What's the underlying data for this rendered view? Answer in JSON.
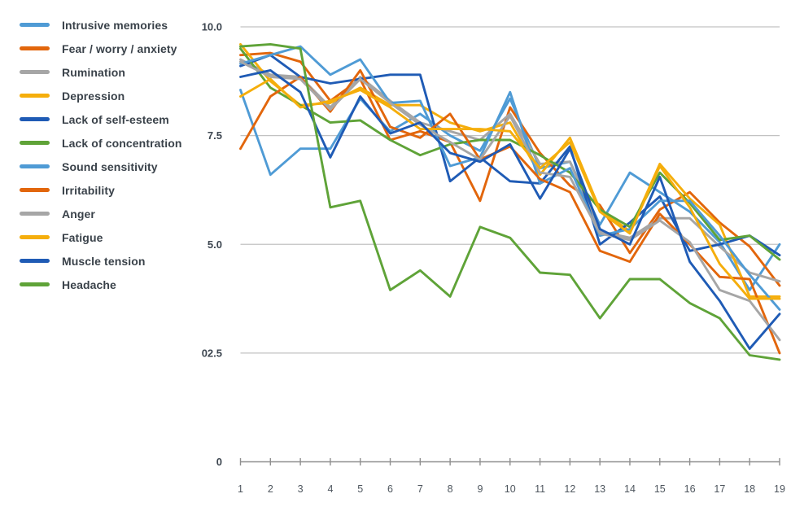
{
  "palette": {
    "lightblue": "#4f9bd5",
    "orange": "#e2660c",
    "gray": "#a6a6a6",
    "yellow": "#f5ae0c",
    "darkblue": "#1f5bb5",
    "green": "#5fa338"
  },
  "axis": {
    "grid_color": "#c2c2c2",
    "axis_color": "#8f8f8f"
  },
  "chart_data": {
    "type": "line",
    "title": "",
    "xlabel": "",
    "ylabel": "",
    "ylim": [
      0,
      10
    ],
    "grid": "horizontal",
    "legend_position": "left",
    "x": [
      1,
      2,
      3,
      4,
      5,
      6,
      7,
      8,
      9,
      10,
      11,
      12,
      13,
      14,
      15,
      16,
      17,
      18,
      19
    ],
    "xticklabels": [
      "1",
      "2",
      "3",
      "4",
      "5",
      "6",
      "7",
      "8",
      "9",
      "10",
      "11",
      "12",
      "13",
      "14",
      "15",
      "16",
      "17",
      "18",
      "19"
    ],
    "yticks": [
      {
        "label": "10.0",
        "value": 10.0
      },
      {
        "label": "7.5",
        "value": 7.5
      },
      {
        "label": "5.0",
        "value": 5.0
      },
      {
        "label": "02.5",
        "value": 2.5
      },
      {
        "label": "0",
        "value": 0.0
      }
    ],
    "series": [
      {
        "name": "Intrusive memories",
        "color": "lightblue",
        "values": [
          8.55,
          6.6,
          7.2,
          7.2,
          8.35,
          7.6,
          8.0,
          7.5,
          7.15,
          8.35,
          6.75,
          6.9,
          5.45,
          6.65,
          6.2,
          5.75,
          5.05,
          3.95,
          5.0
        ]
      },
      {
        "name": "Fear / worry / anxiety",
        "color": "orange",
        "values": [
          9.35,
          9.4,
          9.2,
          8.3,
          8.8,
          7.4,
          7.6,
          7.35,
          6.0,
          8.15,
          7.1,
          6.35,
          5.9,
          4.8,
          5.8,
          6.2,
          5.5,
          4.95,
          4.05
        ]
      },
      {
        "name": "Rumination",
        "color": "gray",
        "values": [
          9.25,
          8.9,
          8.85,
          8.15,
          8.85,
          8.3,
          7.8,
          7.6,
          7.4,
          8.0,
          6.85,
          6.9,
          5.3,
          5.15,
          5.6,
          5.6,
          4.95,
          4.35,
          4.15
        ]
      },
      {
        "name": "Depression",
        "color": "yellow",
        "values": [
          9.6,
          8.75,
          8.2,
          8.25,
          8.6,
          8.2,
          8.2,
          7.8,
          7.6,
          7.8,
          6.6,
          7.45,
          5.8,
          5.3,
          6.85,
          6.05,
          5.45,
          3.8,
          3.8
        ]
      },
      {
        "name": "Lack of self-esteem",
        "color": "darkblue",
        "values": [
          9.1,
          9.35,
          8.85,
          8.7,
          8.8,
          8.9,
          8.9,
          6.45,
          7.0,
          6.45,
          6.4,
          7.25,
          5.0,
          5.5,
          6.1,
          4.85,
          5.0,
          5.2,
          4.75
        ]
      },
      {
        "name": "Lack of concentration",
        "color": "green",
        "values": [
          9.5,
          8.6,
          8.2,
          7.8,
          7.85,
          7.4,
          7.05,
          7.3,
          7.4,
          7.4,
          7.05,
          6.65,
          5.8,
          5.4,
          6.65,
          5.95,
          5.1,
          5.2,
          4.65
        ]
      },
      {
        "name": "Sound sensitivity",
        "color": "lightblue",
        "values": [
          9.15,
          9.35,
          9.55,
          8.9,
          9.25,
          8.25,
          8.3,
          6.8,
          7.0,
          8.5,
          6.4,
          6.75,
          5.2,
          5.35,
          6.0,
          6.0,
          5.2,
          4.3,
          3.5
        ]
      },
      {
        "name": "Irritability",
        "color": "orange",
        "values": [
          7.2,
          8.4,
          8.85,
          8.05,
          9.0,
          7.7,
          7.45,
          8.0,
          6.95,
          7.25,
          6.5,
          6.2,
          4.85,
          4.6,
          5.7,
          5.0,
          4.25,
          4.2,
          2.5
        ]
      },
      {
        "name": "Anger",
        "color": "gray",
        "values": [
          9.2,
          8.85,
          8.8,
          8.1,
          8.8,
          8.25,
          7.75,
          7.35,
          6.95,
          7.95,
          6.65,
          6.55,
          5.25,
          5.1,
          5.55,
          5.05,
          3.95,
          3.7,
          2.8
        ]
      },
      {
        "name": "Fatigue",
        "color": "yellow",
        "values": [
          8.4,
          8.8,
          8.15,
          8.3,
          8.55,
          8.15,
          7.65,
          7.65,
          7.65,
          7.6,
          6.75,
          7.35,
          5.75,
          5.25,
          6.8,
          5.85,
          4.55,
          3.75,
          3.75
        ]
      },
      {
        "name": "Muscle tension",
        "color": "darkblue",
        "values": [
          8.85,
          9.0,
          8.5,
          7.0,
          8.4,
          7.55,
          7.8,
          7.1,
          6.9,
          7.3,
          6.05,
          7.2,
          5.35,
          5.0,
          6.55,
          4.6,
          3.7,
          2.6,
          3.4
        ]
      },
      {
        "name": "Headache",
        "color": "green",
        "values": [
          9.55,
          9.6,
          9.5,
          5.85,
          6.0,
          3.95,
          4.4,
          3.8,
          5.4,
          5.15,
          4.35,
          4.3,
          3.3,
          4.2,
          4.2,
          3.65,
          3.3,
          2.45,
          2.35
        ]
      }
    ]
  }
}
